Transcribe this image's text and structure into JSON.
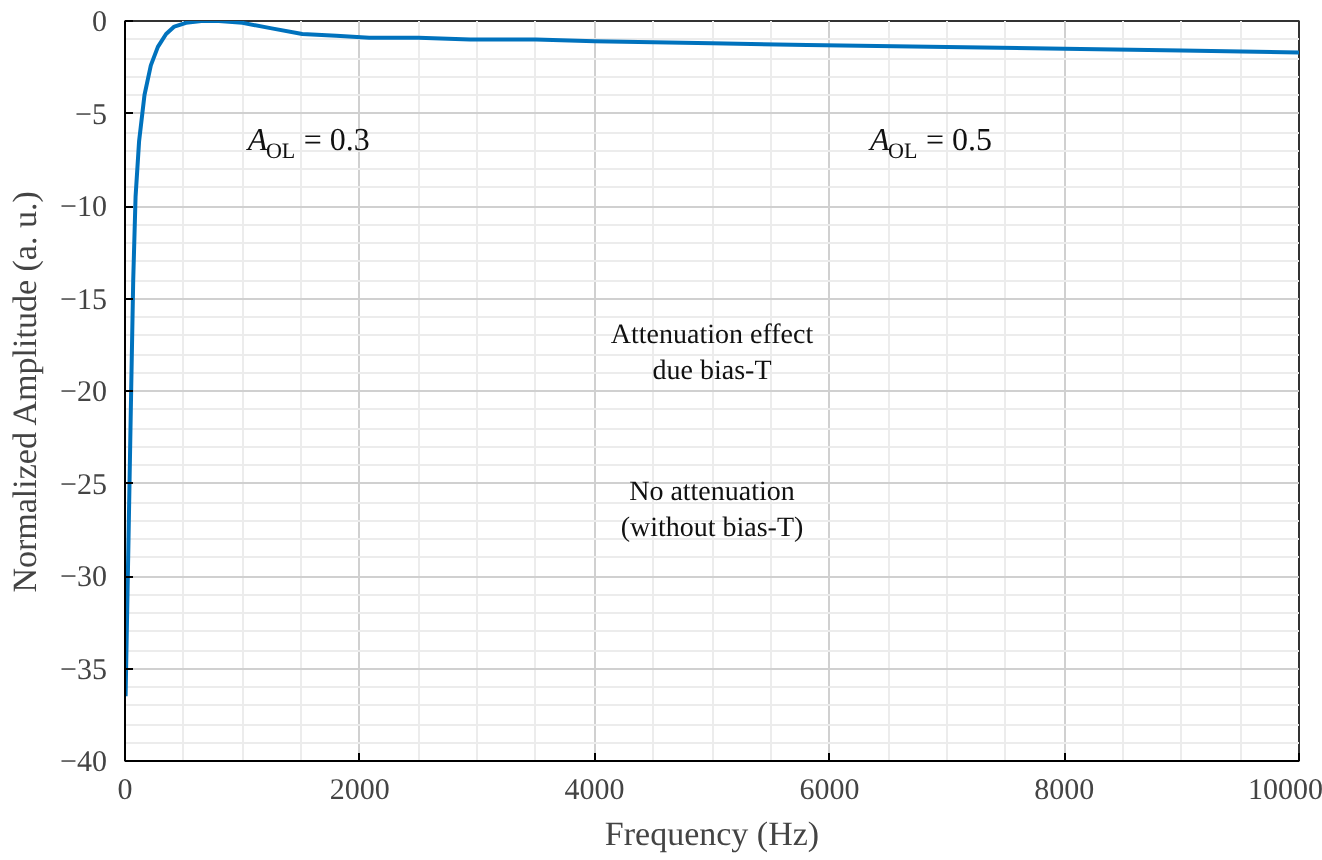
{
  "chart_data": {
    "type": "line",
    "xlabel": "Frequency (Hz)",
    "ylabel": "Normalized Amplitude (a. u.)",
    "x": [
      5,
      30,
      51,
      70,
      90,
      120,
      166,
      220,
      280,
      350,
      420,
      520,
      650,
      800,
      1000,
      1250,
      1510,
      1800,
      2080,
      2500,
      2940,
      3500,
      4000,
      5000,
      5810,
      7000,
      8000,
      9000,
      10000
    ],
    "series": [
      {
        "color": "#0072bd",
        "values": [
          -36.5,
          -28,
          -20.5,
          -14,
          -9.5,
          -6.5,
          -4,
          -2.4,
          -1.4,
          -0.7,
          -0.3,
          -0.1,
          0,
          0,
          -0.1,
          -0.4,
          -0.7,
          -0.8,
          -0.9,
          -0.9,
          -1.0,
          -1.0,
          -1.1,
          -1.2,
          -1.3,
          -1.4,
          -1.5,
          -1.6,
          -1.7
        ]
      }
    ],
    "xlim": [
      0,
      10000
    ],
    "xticks": [
      0,
      2000,
      4000,
      6000,
      8000,
      10000
    ],
    "ylim": [
      -40,
      0
    ],
    "yticks": [
      -40,
      -35,
      -30,
      -25,
      -20,
      -15,
      -10,
      -5,
      0
    ],
    "grid": true,
    "marker": "none",
    "line_style": "solid",
    "annotations": [
      "A$_{OL}$ = 0.3",
      "A$_{OL}$ = 0.5",
      "Attenuation effect\ndue bias-T",
      "No attenuation\n(without bias-T)"
    ]
  }
}
